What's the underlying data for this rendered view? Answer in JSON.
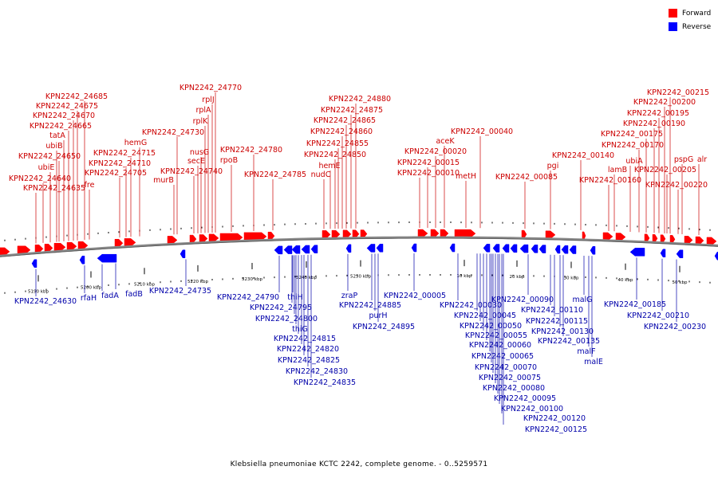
{
  "caption": "Klebsiella pneumoniae KCTC 2242, complete genome. - 0..5259571",
  "legend": {
    "forward": {
      "label": "Forward",
      "color": "#ff0000"
    },
    "reverse": {
      "label": "Reverse",
      "color": "#0000ff"
    }
  },
  "colors": {
    "forward_label": "#cc0000",
    "reverse_label": "#0000aa",
    "backbone": "#888888"
  },
  "ticks": {
    "left": [
      "5190 kbp",
      "5200 kbp",
      "5210 kbp",
      "5220 kbp",
      "5230 kbp",
      "5240 kbp",
      "5250 kbp"
    ],
    "right": [
      "10 kbp",
      "20 kbp",
      "30 kbp",
      "40 kbp",
      "50 kbp"
    ]
  },
  "forward_labels": [
    "KPN2242_24635",
    "fre",
    "ubiE",
    "KPN2242_24640",
    "ubiB",
    "KPN2242_24650",
    "tatA",
    "KPN2242_24665",
    "KPN2242_24670",
    "KPN2242_24675",
    "KPN2242_24685",
    "KPN2242_24705",
    "KPN2242_24710",
    "KPN2242_24715",
    "hemG",
    "murB",
    "KPN2242_24730",
    "KPN2242_24740",
    "secE",
    "nusG",
    "rplK",
    "rplA",
    "rplJ",
    "KPN2242_24770",
    "rpoB",
    "KPN2242_24780",
    "KPN2242_24785",
    "nudC",
    "hemE",
    "KPN2242_24850",
    "KPN2242_24855",
    "KPN2242_24860",
    "KPN2242_24865",
    "KPN2242_24875",
    "KPN2242_24880",
    "KPN2242_00010",
    "KPN2242_00015",
    "KPN2242_00020",
    "aceK",
    "metH",
    "KPN2242_00040",
    "KPN2242_00085",
    "pgi",
    "KPN2242_00140",
    "KPN2242_00160",
    "lamB",
    "ubiA",
    "KPN2242_00170",
    "KPN2242_00175",
    "KPN2242_00190",
    "KPN2242_00195",
    "KPN2242_00200",
    "KPN2242_00215",
    "KPN2242_00205",
    "KPN2242_00220",
    "pspG",
    "alr"
  ],
  "reverse_labels": [
    "KPN2242_24630",
    "rfaH",
    "fadA",
    "fadB",
    "KPN2242_24735",
    "KPN2242_24790",
    "thiH",
    "KPN2242_24795",
    "KPN2242_24800",
    "thiG",
    "KPN2242_24815",
    "KPN2242_24820",
    "KPN2242_24825",
    "KPN2242_24830",
    "KPN2242_24835",
    "zraP",
    "KPN2242_24885",
    "purH",
    "KPN2242_24895",
    "KPN2242_00005",
    "KPN2242_00030",
    "KPN2242_00045",
    "KPN2242_00050",
    "KPN2242_00055",
    "KPN2242_00060",
    "KPN2242_00065",
    "KPN2242_00070",
    "KPN2242_00075",
    "KPN2242_00080",
    "KPN2242_00095",
    "KPN2242_00100",
    "KPN2242_00120",
    "KPN2242_00125",
    "KPN2242_00090",
    "KPN2242_00110",
    "KPN2242_00115",
    "KPN2242_00130",
    "KPN2242_00135",
    "malG",
    "malF",
    "malE",
    "KPN2242_00185",
    "KPN2242_00210",
    "KPN2242_00230"
  ]
}
